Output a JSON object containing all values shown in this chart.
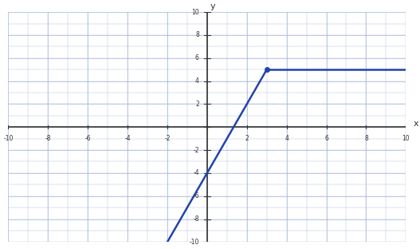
{
  "title": "",
  "xlim": [
    -10,
    10
  ],
  "ylim": [
    -10,
    10
  ],
  "xticks": [
    -10,
    -8,
    -6,
    -4,
    -2,
    0,
    2,
    4,
    6,
    8,
    10
  ],
  "yticks": [
    -10,
    -8,
    -6,
    -4,
    -2,
    0,
    2,
    4,
    6,
    8,
    10
  ],
  "xtick_labels": [
    "-10",
    "-8",
    "-6",
    "-4",
    "-2",
    "",
    "2",
    "4",
    "6",
    "8",
    "10"
  ],
  "ytick_labels": [
    "-10",
    "-8",
    "-6",
    "-4",
    "-2",
    "",
    "2",
    "4",
    "6",
    "8",
    "10"
  ],
  "piece1_x_start": -10,
  "piece1_x_end": 3,
  "piece1_slope": 3,
  "piece1_intercept": -4,
  "piece2_x_start": 3,
  "piece2_x_end": 10,
  "piece2_y": 5,
  "junction_x": 3,
  "junction_y": 5,
  "line_color": "#2244aa",
  "dot_color": "#2244aa",
  "grid_color": "#aabbdd",
  "axis_color": "#333333",
  "bg_color": "#ffffff",
  "figsize": [
    5.27,
    3.12
  ],
  "dpi": 100
}
